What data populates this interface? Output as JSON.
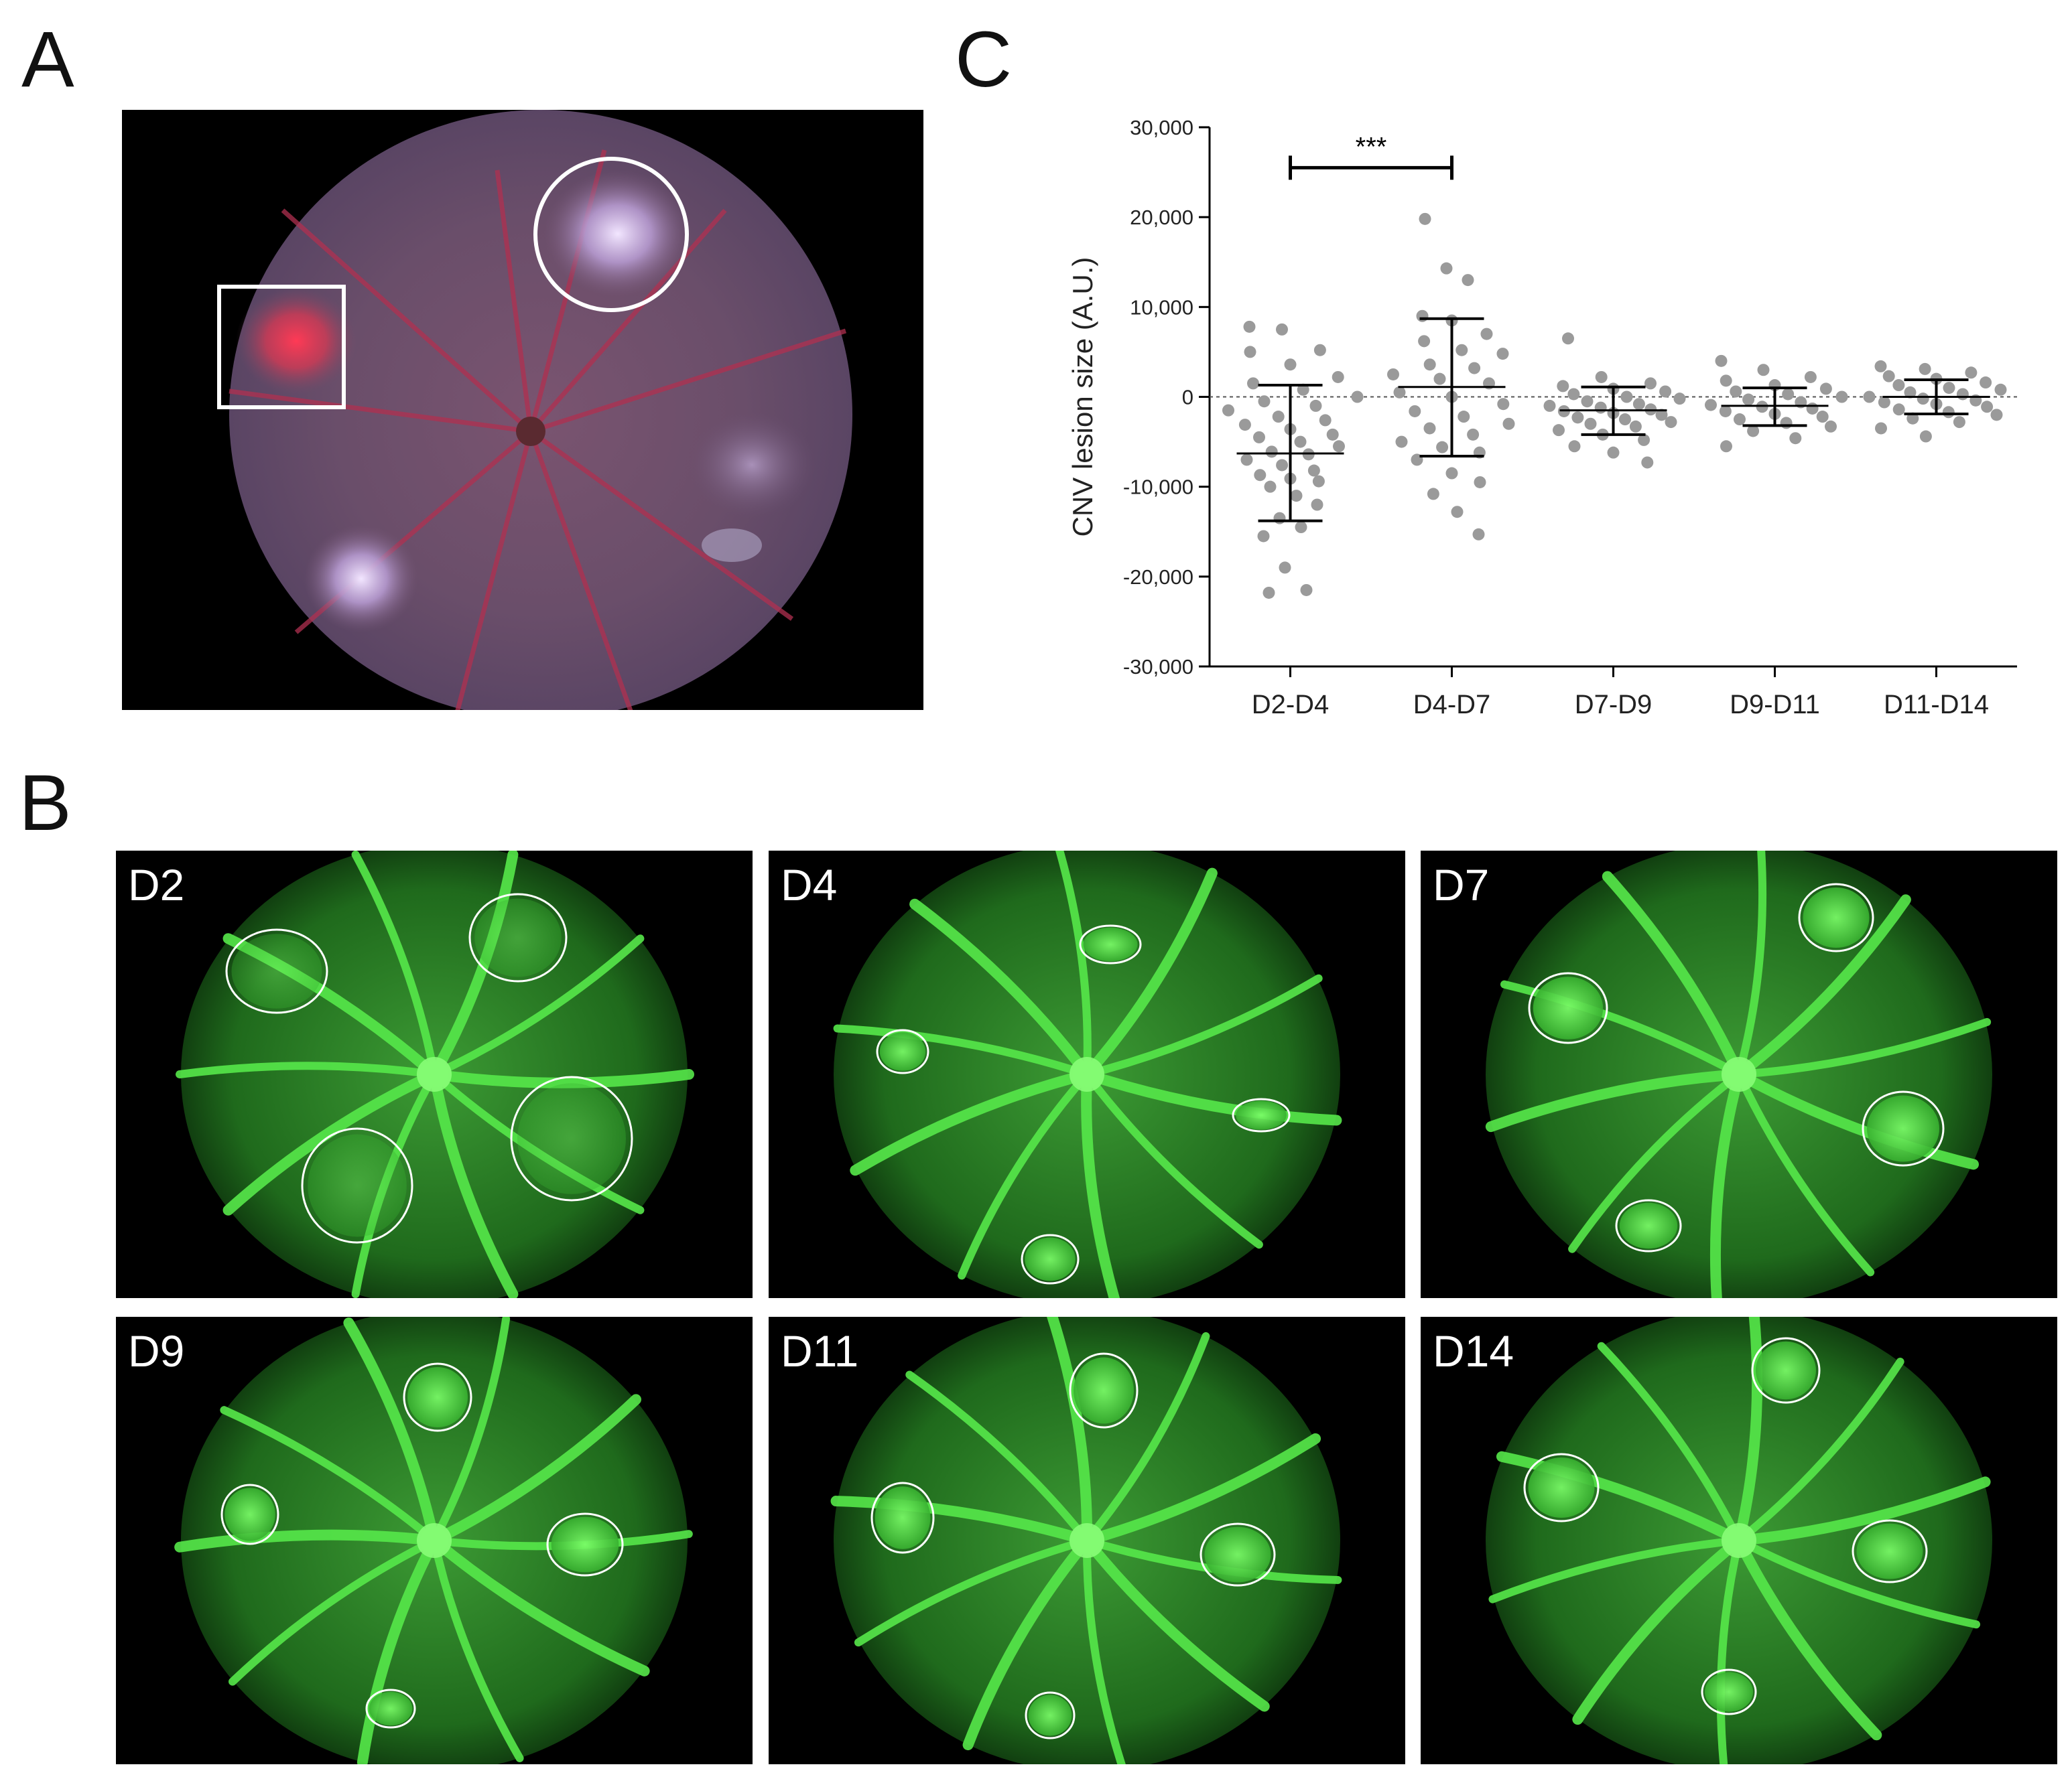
{
  "figure": {
    "panel_a_label": "A",
    "panel_b_label": "B",
    "panel_c_label": "C"
  },
  "panel_a": {
    "image": "color fundus photograph with four laser lesions; one lesion marked by a circle and one by a square"
  },
  "panel_b": {
    "tiles": [
      {
        "label": "D2"
      },
      {
        "label": "D4"
      },
      {
        "label": "D7"
      },
      {
        "label": "D9"
      },
      {
        "label": "D11"
      },
      {
        "label": "D14"
      }
    ]
  },
  "chart_data": {
    "type": "scatter",
    "ylabel": "CNV lesion size (A.U.)",
    "xlabel": "",
    "ylim": [
      -30000,
      30000
    ],
    "yticks": [
      -30000,
      -20000,
      -10000,
      0,
      10000,
      20000,
      30000
    ],
    "ytick_labels": [
      "-30,000",
      "-20,000",
      "-10,000",
      "0",
      "10,000",
      "20,000",
      "30,000"
    ],
    "categories": [
      "D2-D4",
      "D4-D7",
      "D7-D9",
      "D9-D11",
      "D11-D14"
    ],
    "reference_line": 0,
    "point_color": "#9a9a9a",
    "errorbar_color": "#000000",
    "summary": [
      {
        "mean": -6300,
        "lower": -13800,
        "upper": 1300
      },
      {
        "mean": 1100,
        "lower": -6600,
        "upper": 8700
      },
      {
        "mean": -1500,
        "lower": -4200,
        "upper": 1100
      },
      {
        "mean": -1000,
        "lower": -3200,
        "upper": 1000
      },
      {
        "mean": 0,
        "lower": -1900,
        "upper": 1900
      }
    ],
    "points": [
      [
        7800,
        7500,
        5200,
        5000,
        3600,
        2200,
        1500,
        800,
        0,
        -500,
        -1000,
        -1500,
        -2200,
        -2600,
        -3100,
        -3600,
        -4200,
        -4500,
        -5000,
        -5500,
        -6100,
        -6400,
        -7000,
        -7600,
        -8200,
        -8700,
        -9100,
        -9400,
        -10000,
        -11000,
        -12000,
        -13500,
        -14500,
        -15500,
        -19000,
        -21500,
        -21800
      ],
      [
        19800,
        14300,
        13000,
        9000,
        8500,
        7000,
        6200,
        5200,
        4800,
        3600,
        3200,
        2500,
        2000,
        1500,
        500,
        0,
        -800,
        -1600,
        -2200,
        -3000,
        -3500,
        -4200,
        -5000,
        -5600,
        -6200,
        -7000,
        -8500,
        -9500,
        -10800,
        -12800,
        -15300
      ],
      [
        6500,
        2200,
        1500,
        1200,
        900,
        600,
        300,
        0,
        -200,
        -500,
        -800,
        -1000,
        -1200,
        -1400,
        -1600,
        -1800,
        -2000,
        -2300,
        -2500,
        -2800,
        -3000,
        -3300,
        -3700,
        -4200,
        -4800,
        -5500,
        -6200,
        -7300
      ],
      [
        4000,
        3000,
        2200,
        1800,
        1300,
        900,
        600,
        300,
        0,
        -300,
        -600,
        -900,
        -1100,
        -1300,
        -1600,
        -1900,
        -2200,
        -2500,
        -2900,
        -3300,
        -3800,
        -4600,
        -5500
      ],
      [
        3400,
        3100,
        2700,
        2300,
        2000,
        1600,
        1300,
        1000,
        800,
        500,
        300,
        0,
        -200,
        -400,
        -600,
        -800,
        -1100,
        -1400,
        -1700,
        -2000,
        -2400,
        -2800,
        -3500,
        -4400
      ]
    ],
    "significance": {
      "from": "D2-D4",
      "to": "D4-D7",
      "label": "***",
      "y": 25500
    }
  }
}
